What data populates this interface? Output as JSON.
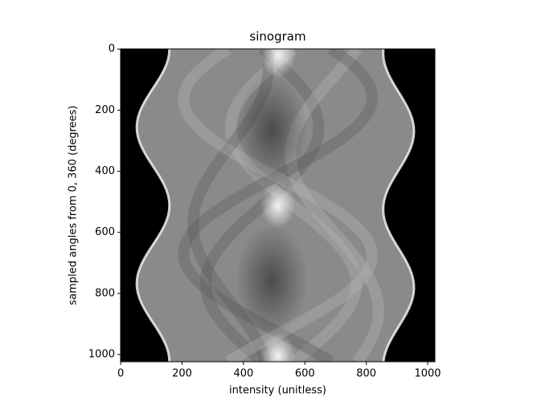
{
  "chart_data": {
    "type": "image",
    "title": "sinogram",
    "x_label": "intensity (unitless)",
    "y_label": "sampled angles from 0, 360 (degrees)",
    "xlim": [
      -0.5,
      1023.5
    ],
    "ylim": [
      1023.5,
      -0.5
    ],
    "xticks": [
      0,
      200,
      400,
      600,
      800,
      1000
    ],
    "yticks": [
      0,
      200,
      400,
      600,
      800,
      1000
    ],
    "colormap": "gray"
  }
}
